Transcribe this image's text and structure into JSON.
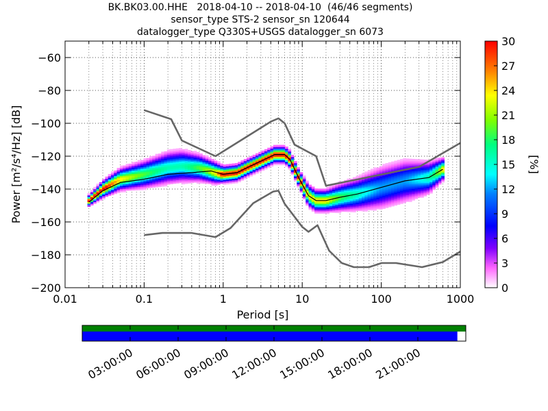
{
  "title_lines": [
    "BK.BK03.00.HHE   2018-04-10 -- 2018-04-10  (46/46 segments)",
    "sensor_type STS-2 sensor_sn 120644",
    "datalogger_type Q330S+USGS datalogger_sn 6073"
  ],
  "chart_data": {
    "type": "heatmap",
    "xlabel": "Period [s]",
    "ylabel": "Power [m²/s⁴/Hz] [dB]",
    "x_scale": "log",
    "xlim": [
      0.01,
      1000
    ],
    "ylim": [
      -200,
      -50
    ],
    "x_ticks": [
      0.01,
      0.1,
      1,
      10,
      100,
      1000
    ],
    "x_tick_labels": [
      "0.01",
      "0.1",
      "1",
      "10",
      "100",
      "1000"
    ],
    "y_ticks": [
      -200,
      -180,
      -160,
      -140,
      -120,
      -100,
      -80,
      -60
    ],
    "y_tick_labels": [
      "−200",
      "−180",
      "−160",
      "−140",
      "−120",
      "−100",
      "−80",
      "−60"
    ],
    "grid": true,
    "colorbar": {
      "label": "[%]",
      "min": 0,
      "max": 30,
      "ticks": [
        0,
        3,
        6,
        9,
        12,
        15,
        18,
        21,
        24,
        27,
        30
      ]
    },
    "series": [
      {
        "style": "model-high",
        "x": [
          0.1,
          0.22,
          0.3,
          0.8,
          4.0,
          5.0,
          6.0,
          8.0,
          15.0,
          20.0,
          300.0,
          1000.0
        ],
        "y": [
          -92,
          -97.5,
          -110.5,
          -120,
          -99,
          -97,
          -100,
          -113,
          -120,
          -138,
          -126.5,
          -112
        ]
      },
      {
        "style": "model-low",
        "x": [
          0.1,
          0.17,
          0.4,
          0.8,
          1.24,
          2.4,
          4.3,
          5.0,
          6.0,
          10.0,
          12.0,
          15.6,
          21.9,
          31.6,
          45.0,
          70.0,
          101.0,
          154.0,
          328.0,
          600.0,
          1000.0
        ],
        "y": [
          -168,
          -166.7,
          -166.7,
          -169.2,
          -163.7,
          -148.6,
          -141.5,
          -141,
          -149,
          -163,
          -166,
          -162,
          -177.5,
          -185,
          -187.5,
          -187.5,
          -185,
          -185,
          -187.5,
          -184.4,
          -178
        ]
      },
      {
        "style": "mode",
        "x": [
          0.02,
          0.03,
          0.05,
          0.1,
          0.2,
          0.4,
          0.7,
          1.0,
          1.5,
          2.0,
          3.0,
          4.5,
          6.0,
          7.0,
          9.0,
          12.0,
          15.0,
          20.0,
          30.0,
          50.0,
          100.0,
          200.0,
          400.0,
          600.0
        ],
        "y": [
          -148,
          -141,
          -136,
          -134,
          -131,
          -130,
          -129,
          -131,
          -130,
          -127,
          -123,
          -119,
          -119,
          -122,
          -133,
          -144,
          -147,
          -147,
          -145,
          -143,
          -139,
          -135,
          -133,
          -128
        ]
      }
    ],
    "density_estimate": {
      "x": [
        0.02,
        0.03,
        0.05,
        0.1,
        0.2,
        0.3,
        0.5,
        0.8,
        1.0,
        1.5,
        2.0,
        3.0,
        4.5,
        6.0,
        7.0,
        9.0,
        12.0,
        15.0,
        20.0,
        30.0,
        50.0,
        100.0,
        200.0,
        400.0,
        600.0
      ],
      "center": [
        -147,
        -140,
        -134,
        -131,
        -127,
        -126,
        -127,
        -130,
        -131,
        -130,
        -127,
        -123,
        -119,
        -119,
        -122,
        -133,
        -144,
        -147,
        -147,
        -145,
        -143,
        -139,
        -135,
        -133,
        -128
      ],
      "spread": [
        2,
        3,
        4,
        5,
        6,
        6,
        5,
        4,
        3,
        3,
        3,
        3,
        3,
        3,
        3,
        3,
        4,
        4,
        4,
        5,
        6,
        8,
        8,
        6,
        4
      ],
      "peak_percent": 30
    },
    "time_axis": {
      "tick_labels": [
        "03:00:00",
        "06:00:00",
        "09:00:00",
        "12:00:00",
        "15:00:00",
        "18:00:00",
        "21:00:00"
      ],
      "top_color": "#008000",
      "bottom_color": "#0000ff",
      "bottom_coverage": 0.978
    }
  }
}
